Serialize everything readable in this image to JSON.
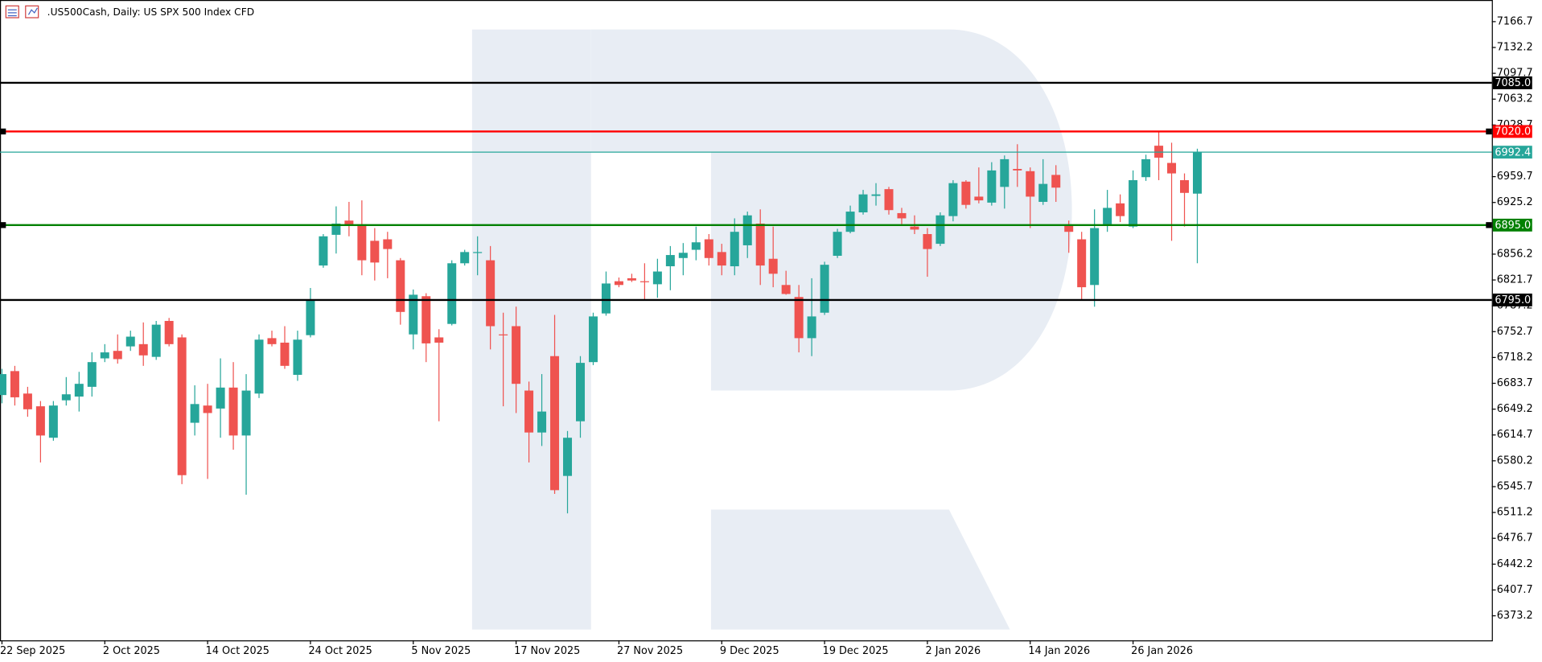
{
  "chart_data": {
    "type": "candlestick",
    "title": ".US500Cash, Daily:  US SPX 500 Index CFD",
    "categories": [
      "22 Sep 2025",
      null,
      null,
      null,
      null,
      null,
      null,
      null,
      "2 Oct 2025",
      null,
      null,
      null,
      null,
      null,
      null,
      null,
      "14 Oct 2025",
      null,
      null,
      null,
      null,
      null,
      null,
      null,
      "24 Oct 2025",
      null,
      null,
      null,
      null,
      null,
      null,
      null,
      "5 Nov 2025",
      null,
      null,
      null,
      null,
      null,
      null,
      null,
      "17 Nov 2025",
      null,
      null,
      null,
      null,
      null,
      null,
      null,
      "27 Nov 2025",
      null,
      null,
      null,
      null,
      null,
      null,
      null,
      "9 Dec 2025",
      null,
      null,
      null,
      null,
      null,
      null,
      null,
      "19 Dec 2025",
      null,
      null,
      null,
      null,
      null,
      null,
      null,
      "2 Jan 2026",
      null,
      null,
      null,
      null,
      null,
      null,
      null,
      "14 Jan 2026",
      null,
      null,
      null,
      null,
      null,
      null,
      null,
      "26 Jan 2026",
      null,
      null,
      null,
      null,
      null
    ],
    "open": [
      6668,
      6700,
      6670,
      6653,
      6611,
      6661,
      6666,
      6679,
      6717,
      6727,
      6733,
      6736,
      6719,
      6767,
      6745,
      6631,
      6654,
      6650,
      6678,
      6614,
      6670,
      6744,
      6738,
      6695,
      6748,
      6841,
      6882,
      6901,
      6896,
      6874,
      6876,
      6848,
      6749,
      6800,
      6745,
      6763,
      6844,
      6858,
      6848,
      6749,
      6760,
      6674,
      6618,
      6720,
      6560,
      6633,
      6712,
      6777,
      6820,
      6824,
      6820,
      6816,
      6840,
      6851,
      6862,
      6876,
      6859,
      6840,
      6868,
      6897,
      6850,
      6815,
      6799,
      6744,
      6778,
      6854,
      6886,
      6912,
      6934,
      6943,
      6911,
      6893,
      6883,
      6870,
      6907,
      6953,
      6933,
      6925,
      6946,
      6970,
      6967,
      6926,
      6962,
      6895,
      6876,
      6815,
      6896,
      6924,
      6893,
      6959,
      7001,
      6978,
      6955,
      6937
    ],
    "high": [
      6703,
      6707,
      6679,
      6660,
      6660,
      6692,
      6699,
      6725,
      6736,
      6749,
      6754,
      6765,
      6767,
      6771,
      6749,
      6681,
      6683,
      6717,
      6712,
      6696,
      6749,
      6754,
      6760,
      6754,
      6811,
      6883,
      6920,
      6926,
      6928,
      6891,
      6886,
      6851,
      6809,
      6804,
      6756,
      6848,
      6862,
      6880,
      6867,
      6778,
      6786,
      6686,
      6696,
      6775,
      6620,
      6720,
      6778,
      6833,
      6825,
      6830,
      6844,
      6850,
      6867,
      6871,
      6893,
      6883,
      6870,
      6904,
      6913,
      6916,
      6893,
      6834,
      6815,
      6824,
      6846,
      6890,
      6921,
      6942,
      6951,
      6946,
      6918,
      6908,
      6891,
      6912,
      6955,
      6955,
      6972,
      6979,
      6988,
      7003,
      6972,
      6983,
      6975,
      6901,
      6886,
      6916,
      6942,
      6936,
      6968,
      6989,
      7020,
      7005,
      6964,
      6997
    ],
    "low": [
      6657,
      6654,
      6639,
      6578,
      6607,
      6654,
      6646,
      6666,
      6712,
      6710,
      6727,
      6707,
      6715,
      6733,
      6549,
      6614,
      6556,
      6611,
      6595,
      6535,
      6664,
      6733,
      6703,
      6687,
      6745,
      6838,
      6857,
      6880,
      6828,
      6821,
      6824,
      6762,
      6729,
      6712,
      6633,
      6761,
      6841,
      6828,
      6729,
      6653,
      6644,
      6578,
      6600,
      6536,
      6510,
      6611,
      6708,
      6774,
      6812,
      6819,
      6795,
      6798,
      6808,
      6828,
      6848,
      6841,
      6828,
      6828,
      6851,
      6815,
      6812,
      6802,
      6725,
      6720,
      6775,
      6851,
      6884,
      6909,
      6921,
      6909,
      6896,
      6883,
      6826,
      6867,
      6900,
      6917,
      6924,
      6921,
      6917,
      6946,
      6891,
      6922,
      6926,
      6858,
      6794,
      6786,
      6886,
      6899,
      6891,
      6954,
      6955,
      6874,
      6893,
      6844
    ],
    "close": [
      6696,
      6665,
      6649,
      6614,
      6654,
      6669,
      6683,
      6712,
      6725,
      6716,
      6746,
      6721,
      6762,
      6736,
      6561,
      6656,
      6644,
      6678,
      6614,
      6674,
      6742,
      6736,
      6707,
      6742,
      6795,
      6880,
      6897,
      6895,
      6848,
      6845,
      6863,
      6779,
      6802,
      6737,
      6738,
      6844,
      6859,
      6859,
      6760,
      6748,
      6683,
      6618,
      6646,
      6541,
      6611,
      6711,
      6773,
      6817,
      6815,
      6821,
      6819,
      6833,
      6855,
      6858,
      6872,
      6851,
      6841,
      6886,
      6908,
      6841,
      6830,
      6803,
      6744,
      6773,
      6842,
      6886,
      6913,
      6936,
      6936,
      6915,
      6904,
      6889,
      6863,
      6908,
      6951,
      6922,
      6928,
      6968,
      6983,
      6968,
      6933,
      6950,
      6945,
      6886,
      6812,
      6891,
      6918,
      6907,
      6955,
      6983,
      6985,
      6964,
      6938,
      6992.4
    ],
    "up_color": "#26a69a",
    "down_color": "#ef5350",
    "ylim": [
      6340.4,
      7195.6
    ],
    "yticks": [
      7166.7,
      7132.2,
      7097.7,
      7063.2,
      7028.7,
      6959.7,
      6925.2,
      6856.2,
      6821.7,
      6787.2,
      6752.7,
      6718.2,
      6683.7,
      6649.2,
      6614.7,
      6580.2,
      6545.7,
      6511.2,
      6476.7,
      6442.2,
      6407.7,
      6373.2
    ],
    "levels": [
      {
        "value": 7085,
        "label": "7085.0",
        "color": "#000000"
      },
      {
        "value": 7020,
        "label": "7020.0",
        "color": "#ff0000",
        "handles": true
      },
      {
        "value": 6992.4,
        "color": "#26a69a",
        "price_line": true
      },
      {
        "value": 6895,
        "label": "6895.0",
        "color": "#008000",
        "handles": true
      },
      {
        "value": 6795,
        "label": "6795.0",
        "color": "#000000"
      }
    ]
  }
}
